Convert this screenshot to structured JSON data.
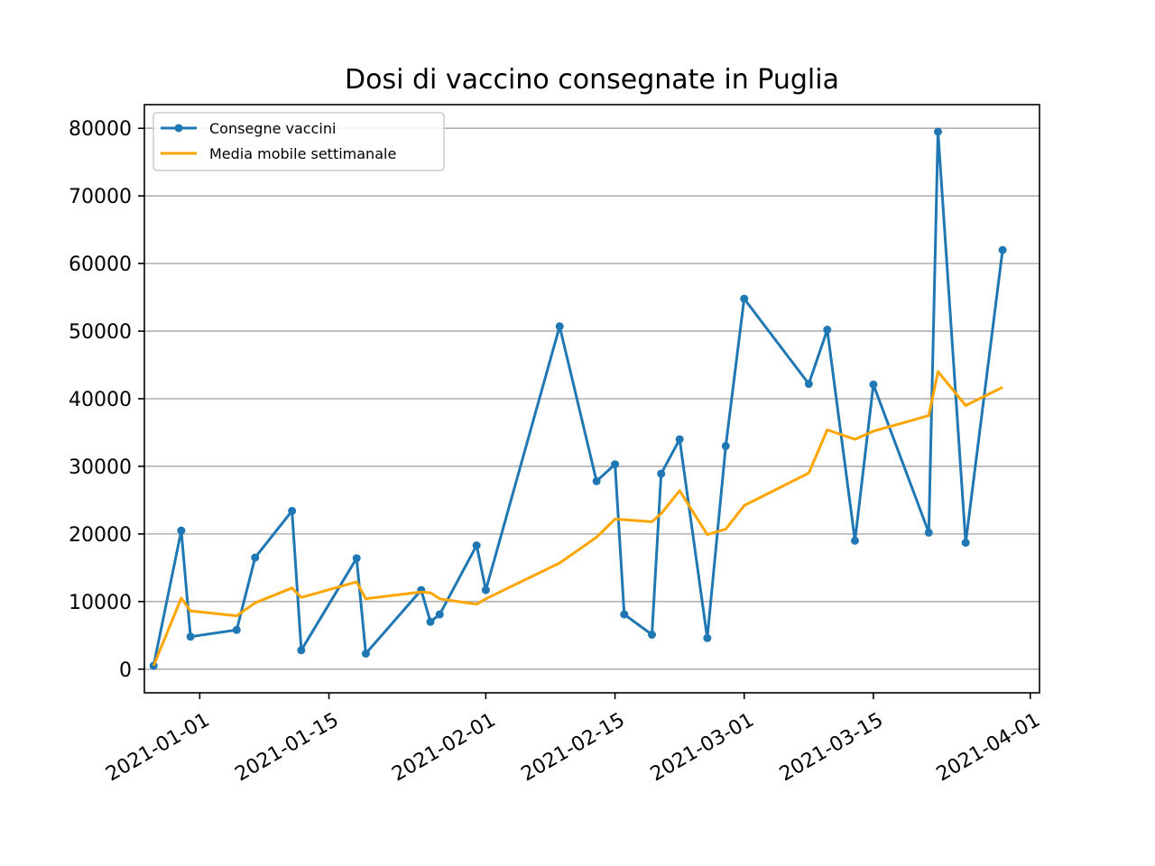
{
  "chart_data": {
    "type": "line",
    "title": "Dosi di vaccino consegnate in Puglia",
    "xlabel": "",
    "ylabel": "",
    "x_dates": [
      "2020-12-28",
      "2021-01-04",
      "2021-01-09",
      "2021-01-17",
      "2021-01-28",
      "2021-02-05",
      "2021-02-13",
      "2021-02-21",
      "2021-02-27",
      "2021-03-12",
      "2021-03-20",
      "2021-03-28"
    ],
    "xlim": [
      "2020-12-26",
      "2021-04-02"
    ],
    "ylim": [
      -3500,
      83500
    ],
    "x_ticks": [
      "2021-01-01",
      "2021-01-15",
      "2021-02-01",
      "2021-02-15",
      "2021-03-01",
      "2021-03-15",
      "2021-04-01"
    ],
    "y_ticks": [
      0,
      10000,
      20000,
      30000,
      40000,
      50000,
      60000,
      70000,
      80000
    ],
    "grid": "y-major",
    "legend_position": "top-left",
    "series": [
      {
        "name": "Consegne vaccini",
        "color": "#1f77b4",
        "marker": "circle",
        "dates": [
          "2020-12-27",
          "2020-12-30",
          "2020-12-31",
          "2021-01-05",
          "2021-01-07",
          "2021-01-11",
          "2021-01-12",
          "2021-01-18",
          "2021-01-19",
          "2021-01-25",
          "2021-01-26",
          "2021-01-27",
          "2021-01-31",
          "2021-02-01",
          "2021-02-09",
          "2021-02-13",
          "2021-02-15",
          "2021-02-16",
          "2021-02-19",
          "2021-02-20",
          "2021-02-22",
          "2021-02-25",
          "2021-02-27",
          "2021-03-01",
          "2021-03-08",
          "2021-03-10",
          "2021-03-13",
          "2021-03-15",
          "2021-03-21",
          "2021-03-22",
          "2021-03-25",
          "2021-03-29"
        ],
        "values": [
          500,
          20500,
          4800,
          5800,
          16500,
          23400,
          2800,
          16400,
          2300,
          11700,
          7000,
          8100,
          18300,
          11700,
          50700,
          27800,
          30300,
          8100,
          5100,
          28900,
          34000,
          4600,
          33000,
          54800,
          42200,
          50200,
          19000,
          42100,
          20200,
          79500,
          18700,
          62000
        ]
      },
      {
        "name": "Media mobile settimanale",
        "color": "orange",
        "marker": "none",
        "dates": [
          "2020-12-27",
          "2020-12-30",
          "2020-12-31",
          "2021-01-05",
          "2021-01-07",
          "2021-01-11",
          "2021-01-12",
          "2021-01-18",
          "2021-01-19",
          "2021-01-25",
          "2021-01-26",
          "2021-01-27",
          "2021-01-31",
          "2021-02-01",
          "2021-02-09",
          "2021-02-13",
          "2021-02-15",
          "2021-02-16",
          "2021-02-19",
          "2021-02-20",
          "2021-02-22",
          "2021-02-25",
          "2021-02-27",
          "2021-03-01",
          "2021-03-08",
          "2021-03-10",
          "2021-03-13",
          "2021-03-15",
          "2021-03-21",
          "2021-03-22",
          "2021-03-25",
          "2021-03-29"
        ],
        "values": [
          500,
          10500,
          8600,
          7900,
          9800,
          12000,
          10600,
          12900,
          10400,
          11400,
          11300,
          10400,
          9600,
          10400,
          15700,
          19500,
          22200,
          22100,
          21800,
          23000,
          26400,
          19900,
          20700,
          24200,
          29000,
          35400,
          34000,
          35200,
          37500,
          44000,
          39000,
          41700
        ]
      }
    ]
  }
}
